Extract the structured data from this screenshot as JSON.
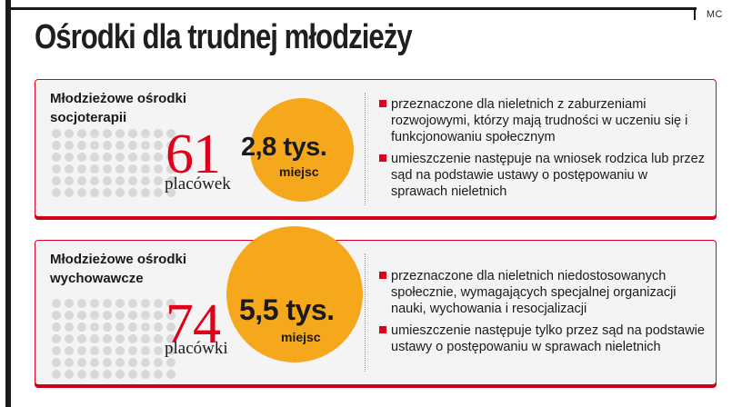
{
  "credit": "MC",
  "title": "Ośrodki dla trudnej młodzieży",
  "colors": {
    "accent": "#e1001a",
    "circle": "#f6a81d",
    "dots": "#d8d8d8"
  },
  "cards": [
    {
      "title_line1": "Młodzieżowe ośrodki",
      "title_line2": "socjoterapii",
      "count": "61",
      "count_label": "placówek",
      "places_value": "2,8 tys.",
      "places_unit": "miejsc",
      "bullets": [
        "przeznaczone dla nieletnich z zaburzeniami rozwojowymi, którzy mają trudności w uczeniu się i funkcjonowaniu społecznym",
        "umieszczenie następuje na wniosek rodzica lub przez sąd na podstawie ustawy o postępowaniu w sprawach nieletnich"
      ]
    },
    {
      "title_line1": "Młodzieżowe ośrodki",
      "title_line2": "wychowawcze",
      "count": "74",
      "count_label": "placówki",
      "places_value": "5,5 tys.",
      "places_unit": "miejsc",
      "bullets": [
        "przeznaczone dla nieletnich niedostosowanych społecznie, wymagających specjalnej organizacji nauki, wychowania i resocjalizacji",
        "umieszczenie następuje tylko przez sąd na podstawie ustawy o postępowaniu w sprawach nieletnich"
      ]
    }
  ]
}
